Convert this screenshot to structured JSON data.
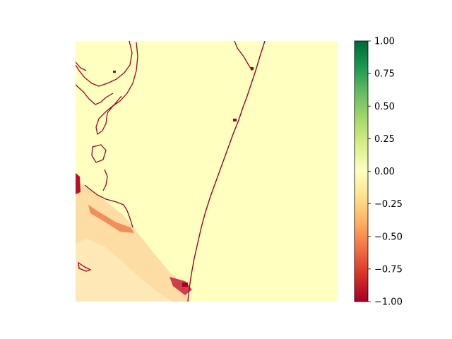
{
  "chart_data": {
    "type": "heatmap",
    "title": "",
    "xlabel": "",
    "ylabel": "",
    "axes_visible": false,
    "colormap": "RdYlGn",
    "colormap_stops": [
      "#a50026",
      "#d73027",
      "#f46d43",
      "#fdae61",
      "#fee08b",
      "#ffffbf",
      "#d9ef8b",
      "#a6d96a",
      "#66bd63",
      "#1a9850",
      "#006837"
    ],
    "vmin": -1.0,
    "vmax": 1.0,
    "colorbar": {
      "orientation": "vertical",
      "position": "right",
      "ticks": [
        1.0,
        0.75,
        0.5,
        0.25,
        0.0,
        -0.25,
        -0.5,
        -0.75,
        -1.0
      ],
      "tick_labels": [
        "1.00",
        "0.75",
        "0.50",
        "0.25",
        "0.00",
        "−0.25",
        "−0.50",
        "−0.75",
        "−1.00"
      ]
    },
    "description_values": {
      "dominant_value": 0.0,
      "coastline_value": -1.0,
      "lagoon_band_value_range": [
        -0.5,
        -0.1
      ]
    }
  },
  "colors": {
    "neutral": "#ffffbf",
    "low": "#a50026",
    "mid_low": "#fdae61",
    "pale": "#fee9a6"
  }
}
